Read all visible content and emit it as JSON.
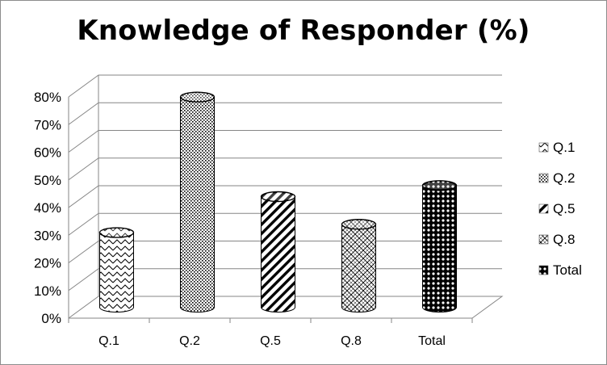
{
  "chart_data": {
    "type": "bar",
    "title": "Knowledge of Responder (%)",
    "categories": [
      "Q.1",
      "Q.2",
      "Q.5",
      "Q.8",
      "Total"
    ],
    "values": [
      27,
      76,
      40,
      30,
      44
    ],
    "unit": "%",
    "ylim": [
      0,
      80
    ],
    "yticks": [
      0,
      10,
      20,
      30,
      40,
      50,
      60,
      70,
      80
    ],
    "ytick_labels": [
      "0%",
      "10%",
      "20%",
      "30%",
      "40%",
      "50%",
      "60%",
      "70%",
      "80%"
    ],
    "grid": true,
    "legend": {
      "position": "right",
      "entries": [
        "Q.1",
        "Q.2",
        "Q.5",
        "Q.8",
        "Total"
      ]
    },
    "bar_shape": "cylinder",
    "style": "3d",
    "colors": {
      "ink": "#000000",
      "grid": "#868686",
      "frame": "#8c8c8c",
      "background": "#ffffff"
    }
  }
}
